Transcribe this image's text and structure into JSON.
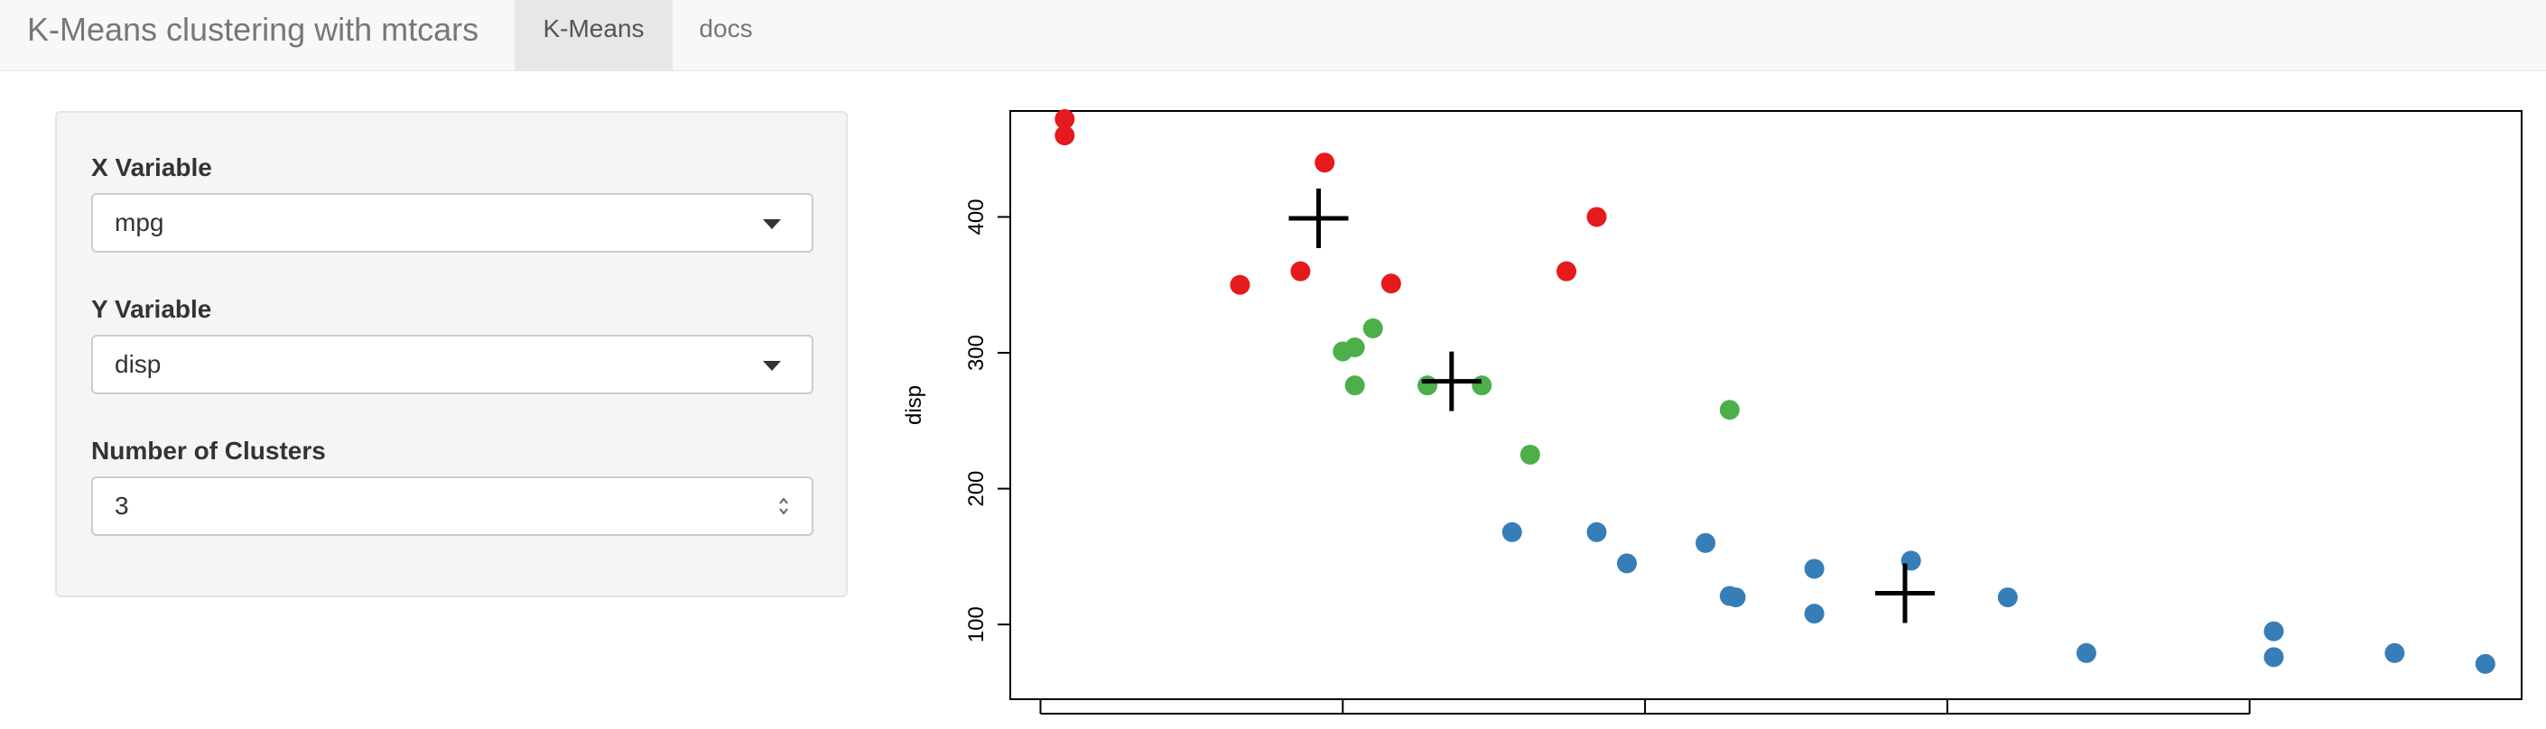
{
  "navbar": {
    "brand": "K-Means clustering with mtcars",
    "tabs": [
      {
        "label": "K-Means",
        "active": true
      },
      {
        "label": "docs",
        "active": false
      }
    ]
  },
  "sidebar": {
    "x_variable": {
      "label": "X Variable",
      "value": "mpg"
    },
    "y_variable": {
      "label": "Y Variable",
      "value": "disp"
    },
    "clusters": {
      "label": "Number of Clusters",
      "value": "3"
    }
  },
  "colors": {
    "cluster_1": "#e41a1c",
    "cluster_2": "#4daf4a",
    "cluster_3": "#377eb8",
    "centers": "#000000"
  },
  "chart_data": {
    "type": "scatter",
    "title": "",
    "xlabel": "",
    "ylabel": "disp",
    "xlim": [
      9.5,
      34.5
    ],
    "ylim": [
      45,
      478
    ],
    "x_ticks": [
      10,
      15,
      20,
      25,
      30
    ],
    "y_ticks": [
      100,
      200,
      300,
      400
    ],
    "y_tick_labels": [
      "100",
      "200",
      "300",
      "400"
    ],
    "grid": false,
    "legend": "none",
    "series": [
      {
        "cluster": 1,
        "color": "#e41a1c",
        "points": [
          [
            10.4,
            472
          ],
          [
            10.4,
            460
          ],
          [
            14.7,
            440
          ],
          [
            13.3,
            350
          ],
          [
            14.3,
            360
          ],
          [
            15.8,
            351
          ],
          [
            18.7,
            360
          ],
          [
            19.2,
            400
          ]
        ]
      },
      {
        "cluster": 2,
        "color": "#4daf4a",
        "points": [
          [
            15.0,
            301
          ],
          [
            15.2,
            304
          ],
          [
            15.5,
            318
          ],
          [
            15.2,
            276
          ],
          [
            16.4,
            276
          ],
          [
            17.3,
            276
          ],
          [
            18.1,
            225
          ],
          [
            21.4,
            258
          ]
        ]
      },
      {
        "cluster": 3,
        "color": "#377eb8",
        "points": [
          [
            17.8,
            168
          ],
          [
            19.2,
            168
          ],
          [
            19.7,
            145
          ],
          [
            21.0,
            160
          ],
          [
            21.4,
            121
          ],
          [
            21.5,
            120
          ],
          [
            22.8,
            141
          ],
          [
            22.8,
            108
          ],
          [
            24.4,
            147
          ],
          [
            26.0,
            120
          ],
          [
            27.3,
            79
          ],
          [
            30.4,
            95
          ],
          [
            30.4,
            76
          ],
          [
            32.4,
            79
          ],
          [
            33.9,
            71
          ]
        ]
      }
    ],
    "centers": [
      [
        14.6,
        399
      ],
      [
        16.8,
        279
      ],
      [
        24.3,
        123
      ]
    ]
  }
}
